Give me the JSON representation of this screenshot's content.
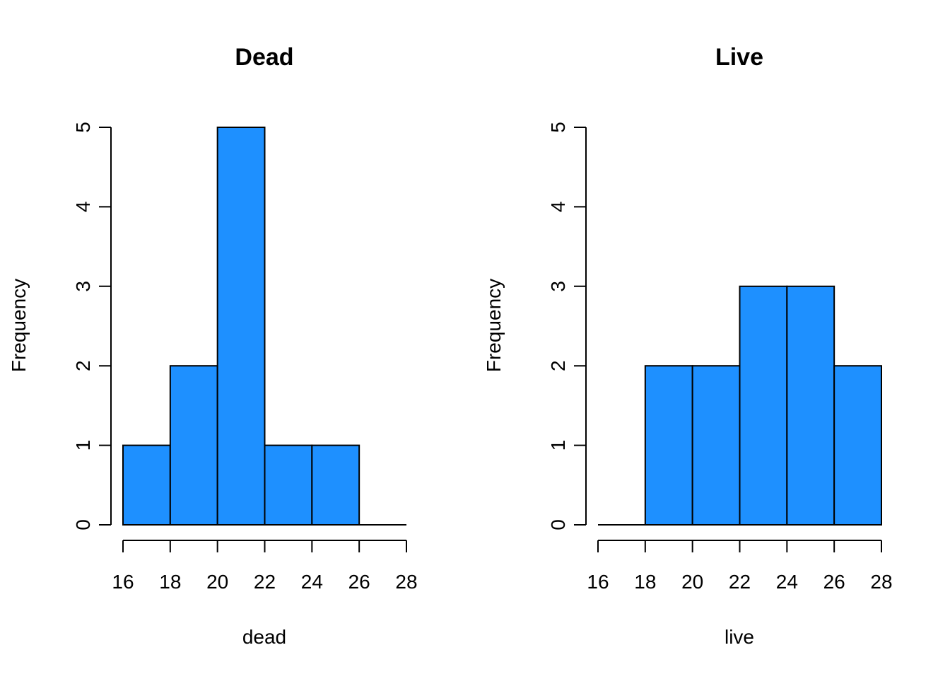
{
  "chart_data": [
    {
      "type": "bar",
      "title": "Dead",
      "xlabel": "dead",
      "ylabel": "Frequency",
      "bins": [
        [
          16,
          18
        ],
        [
          18,
          20
        ],
        [
          20,
          22
        ],
        [
          22,
          24
        ],
        [
          24,
          26
        ],
        [
          26,
          28
        ]
      ],
      "values": [
        1,
        2,
        5,
        1,
        1,
        0
      ],
      "xticks": [
        16,
        18,
        20,
        22,
        24,
        26,
        28
      ],
      "yticks": [
        0,
        1,
        2,
        3,
        4,
        5
      ],
      "xlim": [
        16,
        28
      ],
      "ylim": [
        0,
        5
      ],
      "bar_color": "#1E90FF"
    },
    {
      "type": "bar",
      "title": "Live",
      "xlabel": "live",
      "ylabel": "Frequency",
      "bins": [
        [
          16,
          18
        ],
        [
          18,
          20
        ],
        [
          20,
          22
        ],
        [
          22,
          24
        ],
        [
          24,
          26
        ],
        [
          26,
          28
        ]
      ],
      "values": [
        0,
        2,
        2,
        3,
        3,
        2
      ],
      "xticks": [
        16,
        18,
        20,
        22,
        24,
        26,
        28
      ],
      "yticks": [
        0,
        1,
        2,
        3,
        4,
        5
      ],
      "xlim": [
        16,
        28
      ],
      "ylim": [
        0,
        5
      ],
      "bar_color": "#1E90FF"
    }
  ]
}
